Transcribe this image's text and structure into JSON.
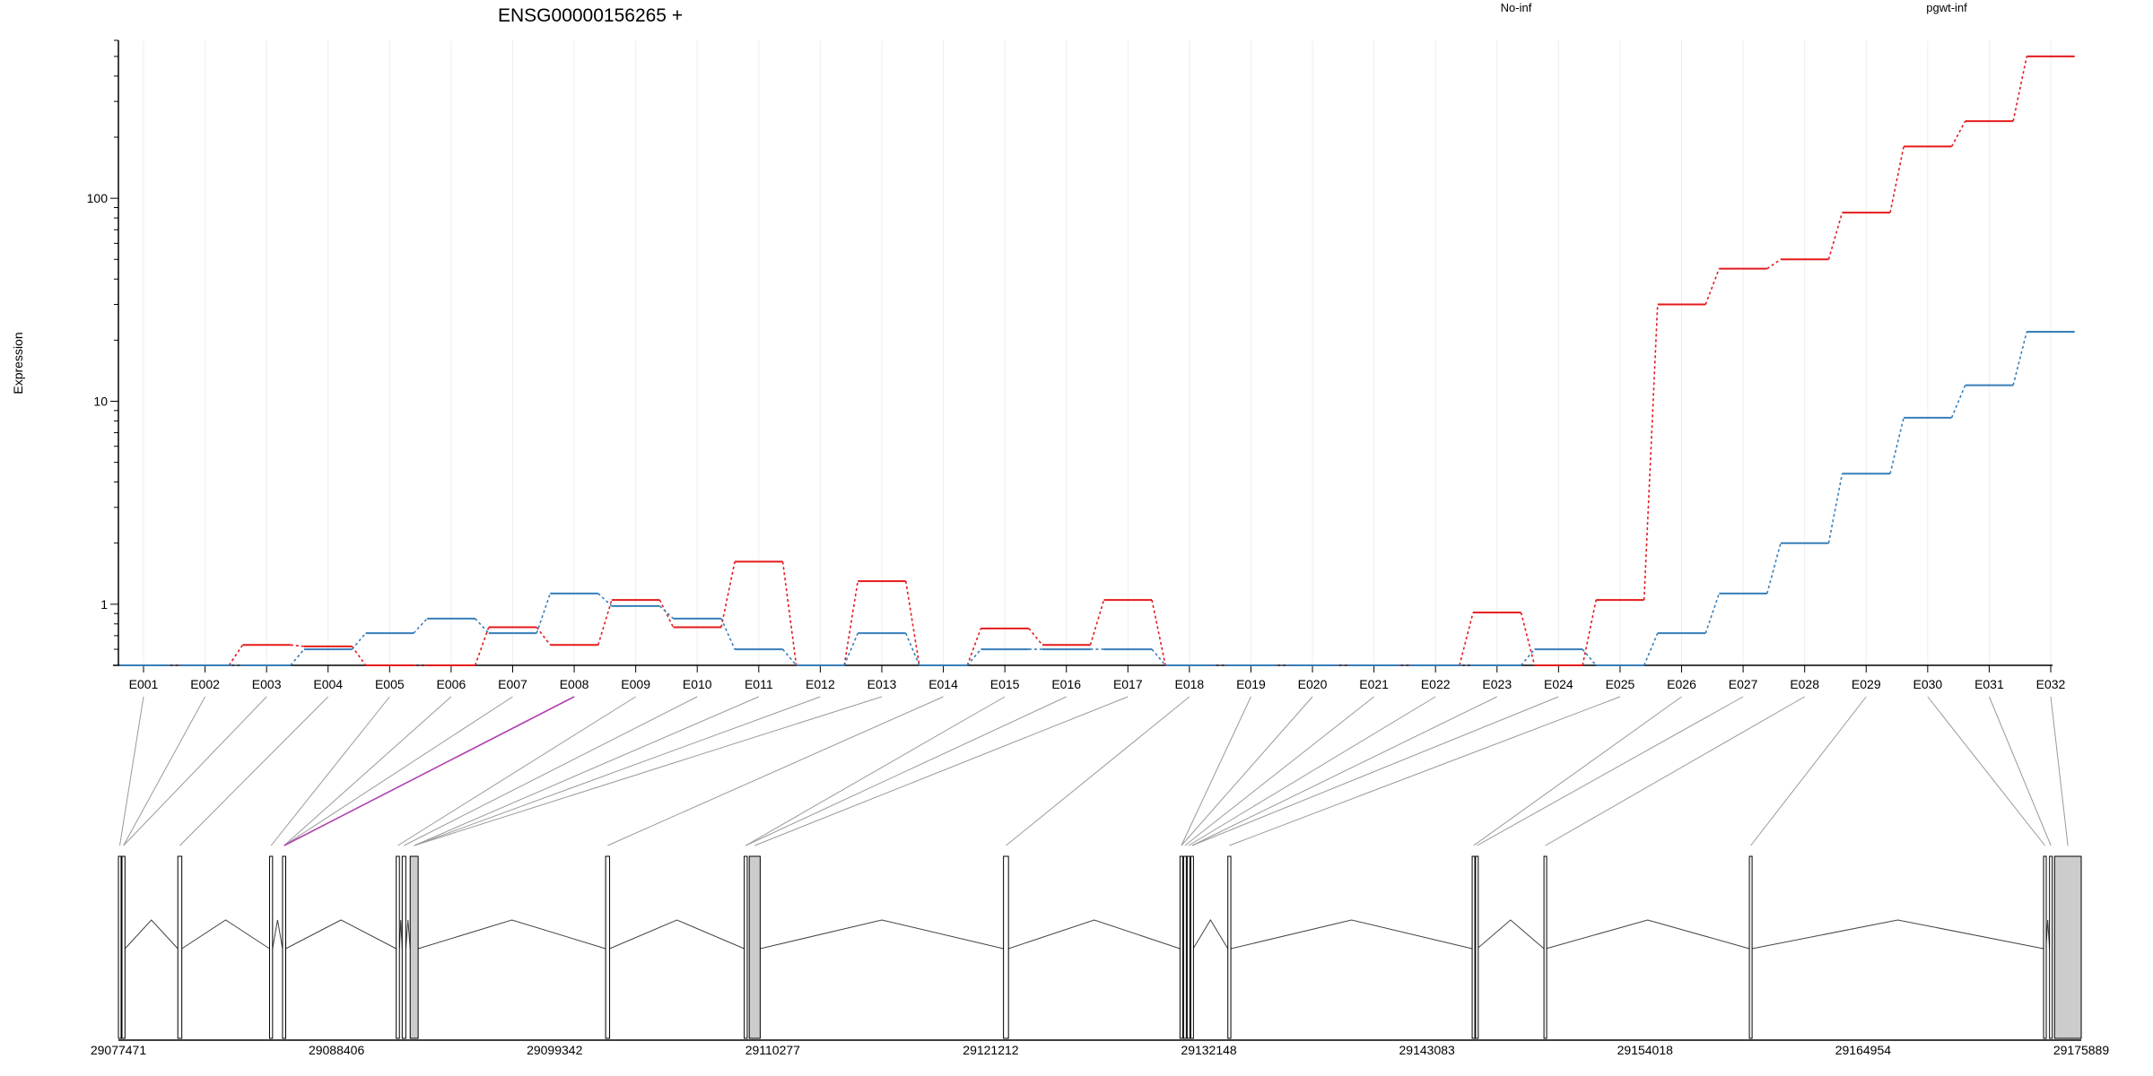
{
  "chart_data": {
    "type": "line",
    "title": "ENSG00000156265 +",
    "ylabel": "Expression",
    "yscale": "log",
    "ylim": [
      0.5,
      600
    ],
    "yticks": [
      {
        "value": 1,
        "label": "1"
      },
      {
        "value": 10,
        "label": "10"
      },
      {
        "value": 100,
        "label": "100"
      }
    ],
    "grid": "vertical",
    "legend": "top",
    "categories": [
      "E001",
      "E002",
      "E003",
      "E004",
      "E005",
      "E006",
      "E007",
      "E008",
      "E009",
      "E010",
      "E011",
      "E012",
      "E013",
      "E014",
      "E015",
      "E016",
      "E017",
      "E018",
      "E019",
      "E020",
      "E021",
      "E022",
      "E023",
      "E024",
      "E025",
      "E026",
      "E027",
      "E028",
      "E029",
      "E030",
      "E031",
      "E032"
    ],
    "series": [
      {
        "name": "No-inf",
        "color": "#e41a1c",
        "values": [
          0.5,
          0.5,
          0.63,
          0.62,
          0.5,
          0.5,
          0.77,
          0.63,
          1.05,
          0.77,
          1.62,
          0.5,
          1.3,
          0.5,
          0.76,
          0.63,
          1.05,
          0.5,
          0.5,
          0.5,
          0.5,
          0.5,
          0.91,
          0.5,
          1.05,
          30,
          45,
          50,
          85,
          180,
          240,
          500
        ]
      },
      {
        "name": "pgwt-inf",
        "color": "#377eb8",
        "values": [
          0.5,
          0.5,
          0.5,
          0.6,
          0.72,
          0.85,
          0.72,
          1.13,
          0.98,
          0.85,
          0.6,
          0.5,
          0.72,
          0.5,
          0.6,
          0.6,
          0.6,
          0.5,
          0.5,
          0.5,
          0.5,
          0.5,
          0.5,
          0.6,
          0.5,
          0.72,
          1.13,
          2.0,
          4.4,
          8.3,
          12,
          22
        ]
      }
    ],
    "gene_model": {
      "coordinate_labels": [
        "29077471",
        "29088406",
        "29099342",
        "29110277",
        "29121212",
        "29132148",
        "29143083",
        "29154018",
        "29164954",
        "29175889"
      ],
      "range": [
        29077471,
        29175889
      ],
      "highlight_exon": "E008",
      "highlight_color": "#b040b0",
      "exons": [
        {
          "id": "E001",
          "start": 29077471,
          "end": 29077600
        },
        {
          "id": "E002",
          "start": 29077650,
          "end": 29077800
        },
        {
          "id": "E003",
          "start": 29080450,
          "end": 29080650
        },
        {
          "id": "E004",
          "start": 29085050,
          "end": 29085200
        },
        {
          "id": "E005",
          "start": 29085700,
          "end": 29085860
        },
        {
          "id": "E006",
          "start": 29091400,
          "end": 29091560
        },
        {
          "id": "E007",
          "start": 29091700,
          "end": 29091880
        },
        {
          "id": "E008",
          "start": 29092100,
          "end": 29092500
        },
        {
          "id": "E009",
          "start": 29101900,
          "end": 29102100
        },
        {
          "id": "E010",
          "start": 29108850,
          "end": 29109000
        },
        {
          "id": "E011",
          "start": 29109100,
          "end": 29109650
        },
        {
          "id": "E012",
          "start": 29121850,
          "end": 29122100
        },
        {
          "id": "E013",
          "start": 29130700,
          "end": 29130820
        },
        {
          "id": "E014",
          "start": 29130880,
          "end": 29131000
        },
        {
          "id": "E015",
          "start": 29131060,
          "end": 29131180
        },
        {
          "id": "E016",
          "start": 29131240,
          "end": 29131360
        },
        {
          "id": "E017",
          "start": 29133100,
          "end": 29133250
        },
        {
          "id": "E018",
          "start": 29145350,
          "end": 29145480
        },
        {
          "id": "E019",
          "start": 29145520,
          "end": 29145600
        },
        {
          "id": "E020",
          "start": 29148950,
          "end": 29149050
        },
        {
          "id": "E021",
          "start": 29159250,
          "end": 29159380
        },
        {
          "id": "E022",
          "start": 29174000,
          "end": 29174120
        },
        {
          "id": "E023",
          "start": 29174300,
          "end": 29174420
        },
        {
          "id": "E024",
          "start": 29174550,
          "end": 29175889
        }
      ],
      "connectors": [
        {
          "category": "E001",
          "exon": "E001"
        },
        {
          "category": "E002",
          "exon": "E002"
        },
        {
          "category": "E003",
          "exon": "E002"
        },
        {
          "category": "E004",
          "exon": "E003"
        },
        {
          "category": "E005",
          "exon": "E004"
        },
        {
          "category": "E006",
          "exon": "E005"
        },
        {
          "category": "E007",
          "exon": "E005"
        },
        {
          "category": "E008",
          "exon": "E005"
        },
        {
          "category": "E009",
          "exon": "E006"
        },
        {
          "category": "E010",
          "exon": "E007"
        },
        {
          "category": "E011",
          "exon": "E008"
        },
        {
          "category": "E012",
          "exon": "E008"
        },
        {
          "category": "E013",
          "exon": "E008"
        },
        {
          "category": "E014",
          "exon": "E009"
        },
        {
          "category": "E015",
          "exon": "E010"
        },
        {
          "category": "E016",
          "exon": "E010"
        },
        {
          "category": "E017",
          "exon": "E011"
        },
        {
          "category": "E018",
          "exon": "E012"
        },
        {
          "category": "E019",
          "exon": "E013"
        },
        {
          "category": "E020",
          "exon": "E013"
        },
        {
          "category": "E021",
          "exon": "E014"
        },
        {
          "category": "E022",
          "exon": "E015"
        },
        {
          "category": "E023",
          "exon": "E016"
        },
        {
          "category": "E024",
          "exon": "E016"
        },
        {
          "category": "E025",
          "exon": "E017"
        },
        {
          "category": "E026",
          "exon": "E018"
        },
        {
          "category": "E027",
          "exon": "E019"
        },
        {
          "category": "E028",
          "exon": "E020"
        },
        {
          "category": "E029",
          "exon": "E021"
        },
        {
          "category": "E030",
          "exon": "E022"
        },
        {
          "category": "E031",
          "exon": "E023"
        },
        {
          "category": "E032",
          "exon": "E024"
        }
      ]
    }
  }
}
